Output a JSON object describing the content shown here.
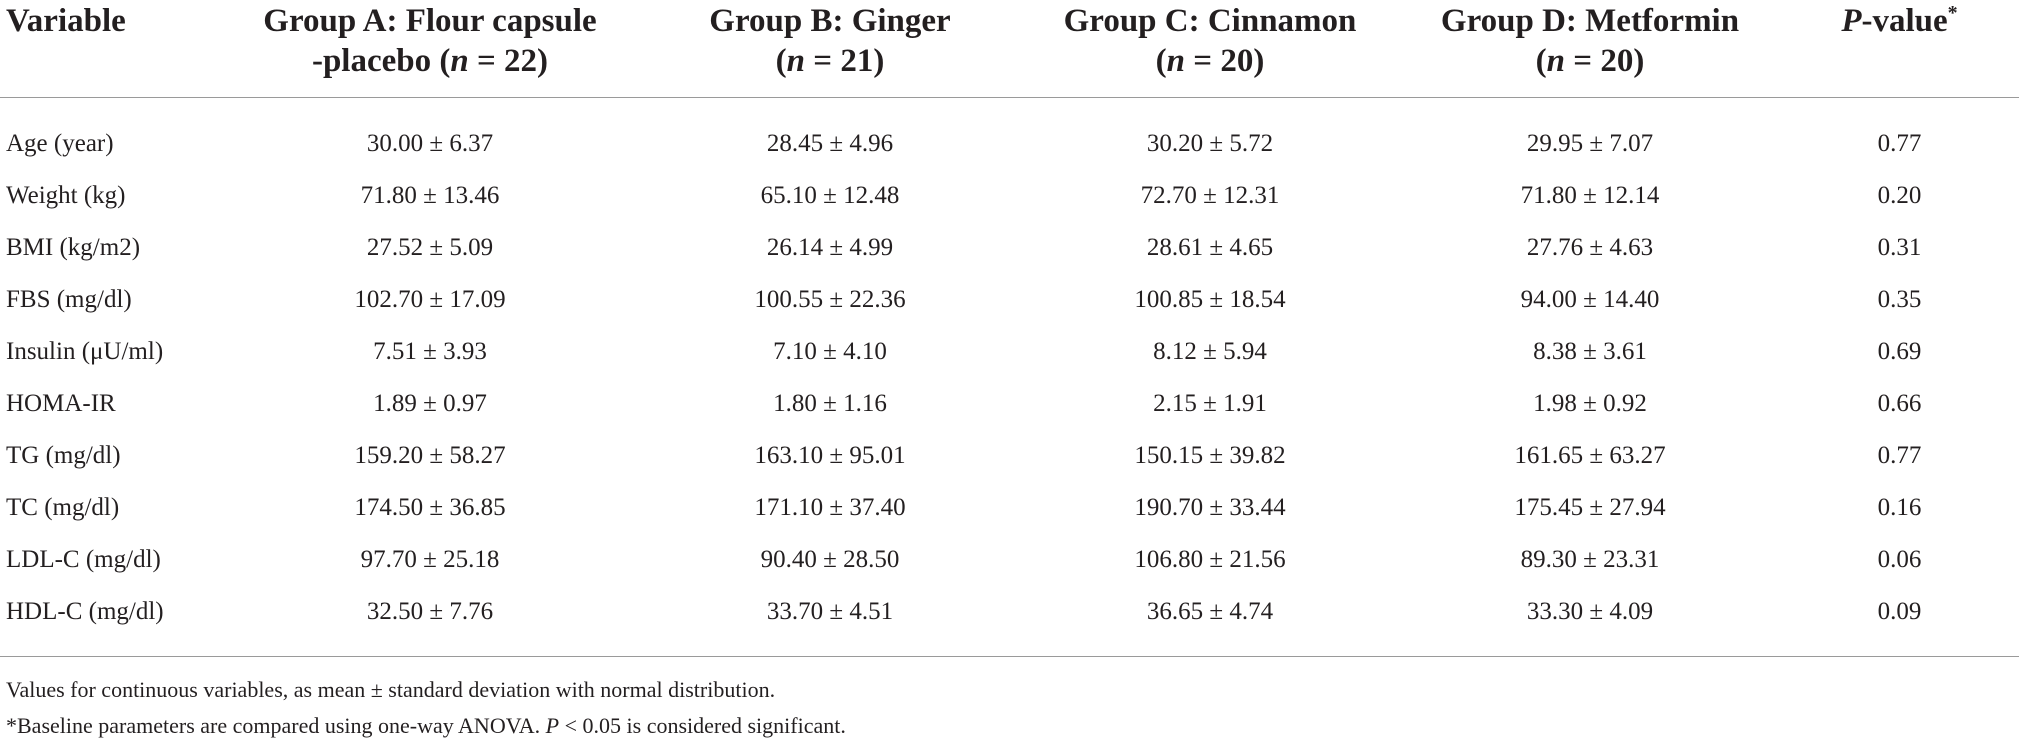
{
  "table": {
    "header": {
      "variable": "Variable",
      "groupA": {
        "line1": "Group A: Flour capsule",
        "line2_pre": "-placebo (",
        "n_sym": "n",
        "line2_post": " = 22)"
      },
      "groupB": {
        "line1": "Group B: Ginger",
        "line2_pre": "(",
        "n_sym": "n",
        "line2_post": " = 21)"
      },
      "groupC": {
        "line1": "Group C: Cinnamon",
        "line2_pre": "(",
        "n_sym": "n",
        "line2_post": " = 20)"
      },
      "groupD": {
        "line1": "Group D: Metformin",
        "line2_pre": "(",
        "n_sym": "n",
        "line2_post": " = 20)"
      },
      "pvalue": {
        "p": "P",
        "rest": "-value",
        "star": "*"
      }
    },
    "rows": [
      {
        "label": "Age (year)",
        "a": "30.00 ± 6.37",
        "b": "28.45 ± 4.96",
        "c": "30.20 ± 5.72",
        "d": "29.95 ± 7.07",
        "p": "0.77"
      },
      {
        "label": "Weight (kg)",
        "a": "71.80 ± 13.46",
        "b": "65.10 ± 12.48",
        "c": "72.70 ± 12.31",
        "d": "71.80 ± 12.14",
        "p": "0.20"
      },
      {
        "label": "BMI (kg/m2)",
        "a": "27.52 ± 5.09",
        "b": "26.14 ± 4.99",
        "c": "28.61 ± 4.65",
        "d": "27.76 ± 4.63",
        "p": "0.31"
      },
      {
        "label": "FBS (mg/dl)",
        "a": "102.70 ± 17.09",
        "b": "100.55 ± 22.36",
        "c": "100.85 ± 18.54",
        "d": "94.00 ± 14.40",
        "p": "0.35"
      },
      {
        "label": "Insulin (μU/ml)",
        "a": "7.51 ± 3.93",
        "b": "7.10 ± 4.10",
        "c": "8.12 ± 5.94",
        "d": "8.38 ± 3.61",
        "p": "0.69"
      },
      {
        "label": "HOMA-IR",
        "a": "1.89 ± 0.97",
        "b": "1.80 ± 1.16",
        "c": "2.15 ± 1.91",
        "d": "1.98 ± 0.92",
        "p": "0.66"
      },
      {
        "label": "TG (mg/dl)",
        "a": "159.20 ± 58.27",
        "b": "163.10 ± 95.01",
        "c": "150.15 ± 39.82",
        "d": "161.65 ± 63.27",
        "p": "0.77"
      },
      {
        "label": "TC (mg/dl)",
        "a": "174.50 ± 36.85",
        "b": "171.10 ± 37.40",
        "c": "190.70 ± 33.44",
        "d": "175.45 ± 27.94",
        "p": "0.16"
      },
      {
        "label": "LDL-C (mg/dl)",
        "a": "97.70 ± 25.18",
        "b": "90.40 ± 28.50",
        "c": "106.80 ± 21.56",
        "d": "89.30 ± 23.31",
        "p": "0.06"
      },
      {
        "label": "HDL-C (mg/dl)",
        "a": "32.50 ± 7.76",
        "b": "33.70 ± 4.51",
        "c": "36.65 ± 4.74",
        "d": "33.30 ± 4.09",
        "p": "0.09"
      }
    ]
  },
  "footnotes": {
    "line1": "Values for continuous variables, as mean ± standard deviation with normal distribution.",
    "line2_pre": "*Baseline parameters are compared using one-way ANOVA. ",
    "line2_p": "P",
    "line2_post": " < 0.05 is considered significant."
  }
}
